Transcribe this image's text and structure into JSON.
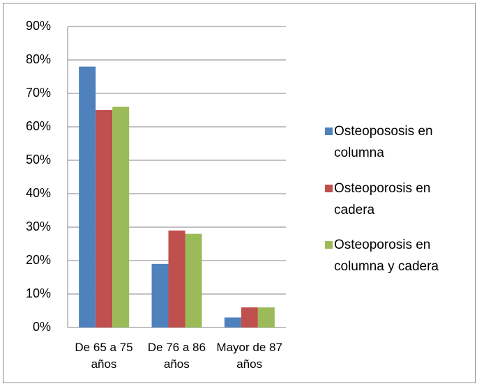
{
  "chart_data": {
    "type": "bar",
    "categories": [
      "De 65 a 75 años",
      "De 76 a 86 años",
      "Mayor de 87 años"
    ],
    "series": [
      {
        "name": "Osteopososis en columna",
        "color": "#4f81bd",
        "values": [
          78,
          19,
          3
        ]
      },
      {
        "name": "Osteoporosis en cadera",
        "color": "#c0504d",
        "values": [
          65,
          29,
          6
        ]
      },
      {
        "name": "Osteoporosis en columna y cadera",
        "color": "#9bbb59",
        "values": [
          66,
          28,
          6
        ]
      }
    ],
    "ylim": [
      0,
      90
    ],
    "yticks": [
      {
        "value": 0,
        "label": "0%"
      },
      {
        "value": 10,
        "label": "10%"
      },
      {
        "value": 20,
        "label": "20%"
      },
      {
        "value": 30,
        "label": "30%"
      },
      {
        "value": 40,
        "label": "40%"
      },
      {
        "value": 50,
        "label": "50%"
      },
      {
        "value": 60,
        "label": "60%"
      },
      {
        "value": 70,
        "label": "70%"
      },
      {
        "value": 80,
        "label": "80%"
      },
      {
        "value": 90,
        "label": "90%"
      }
    ],
    "grid": true,
    "legend": "right"
  }
}
